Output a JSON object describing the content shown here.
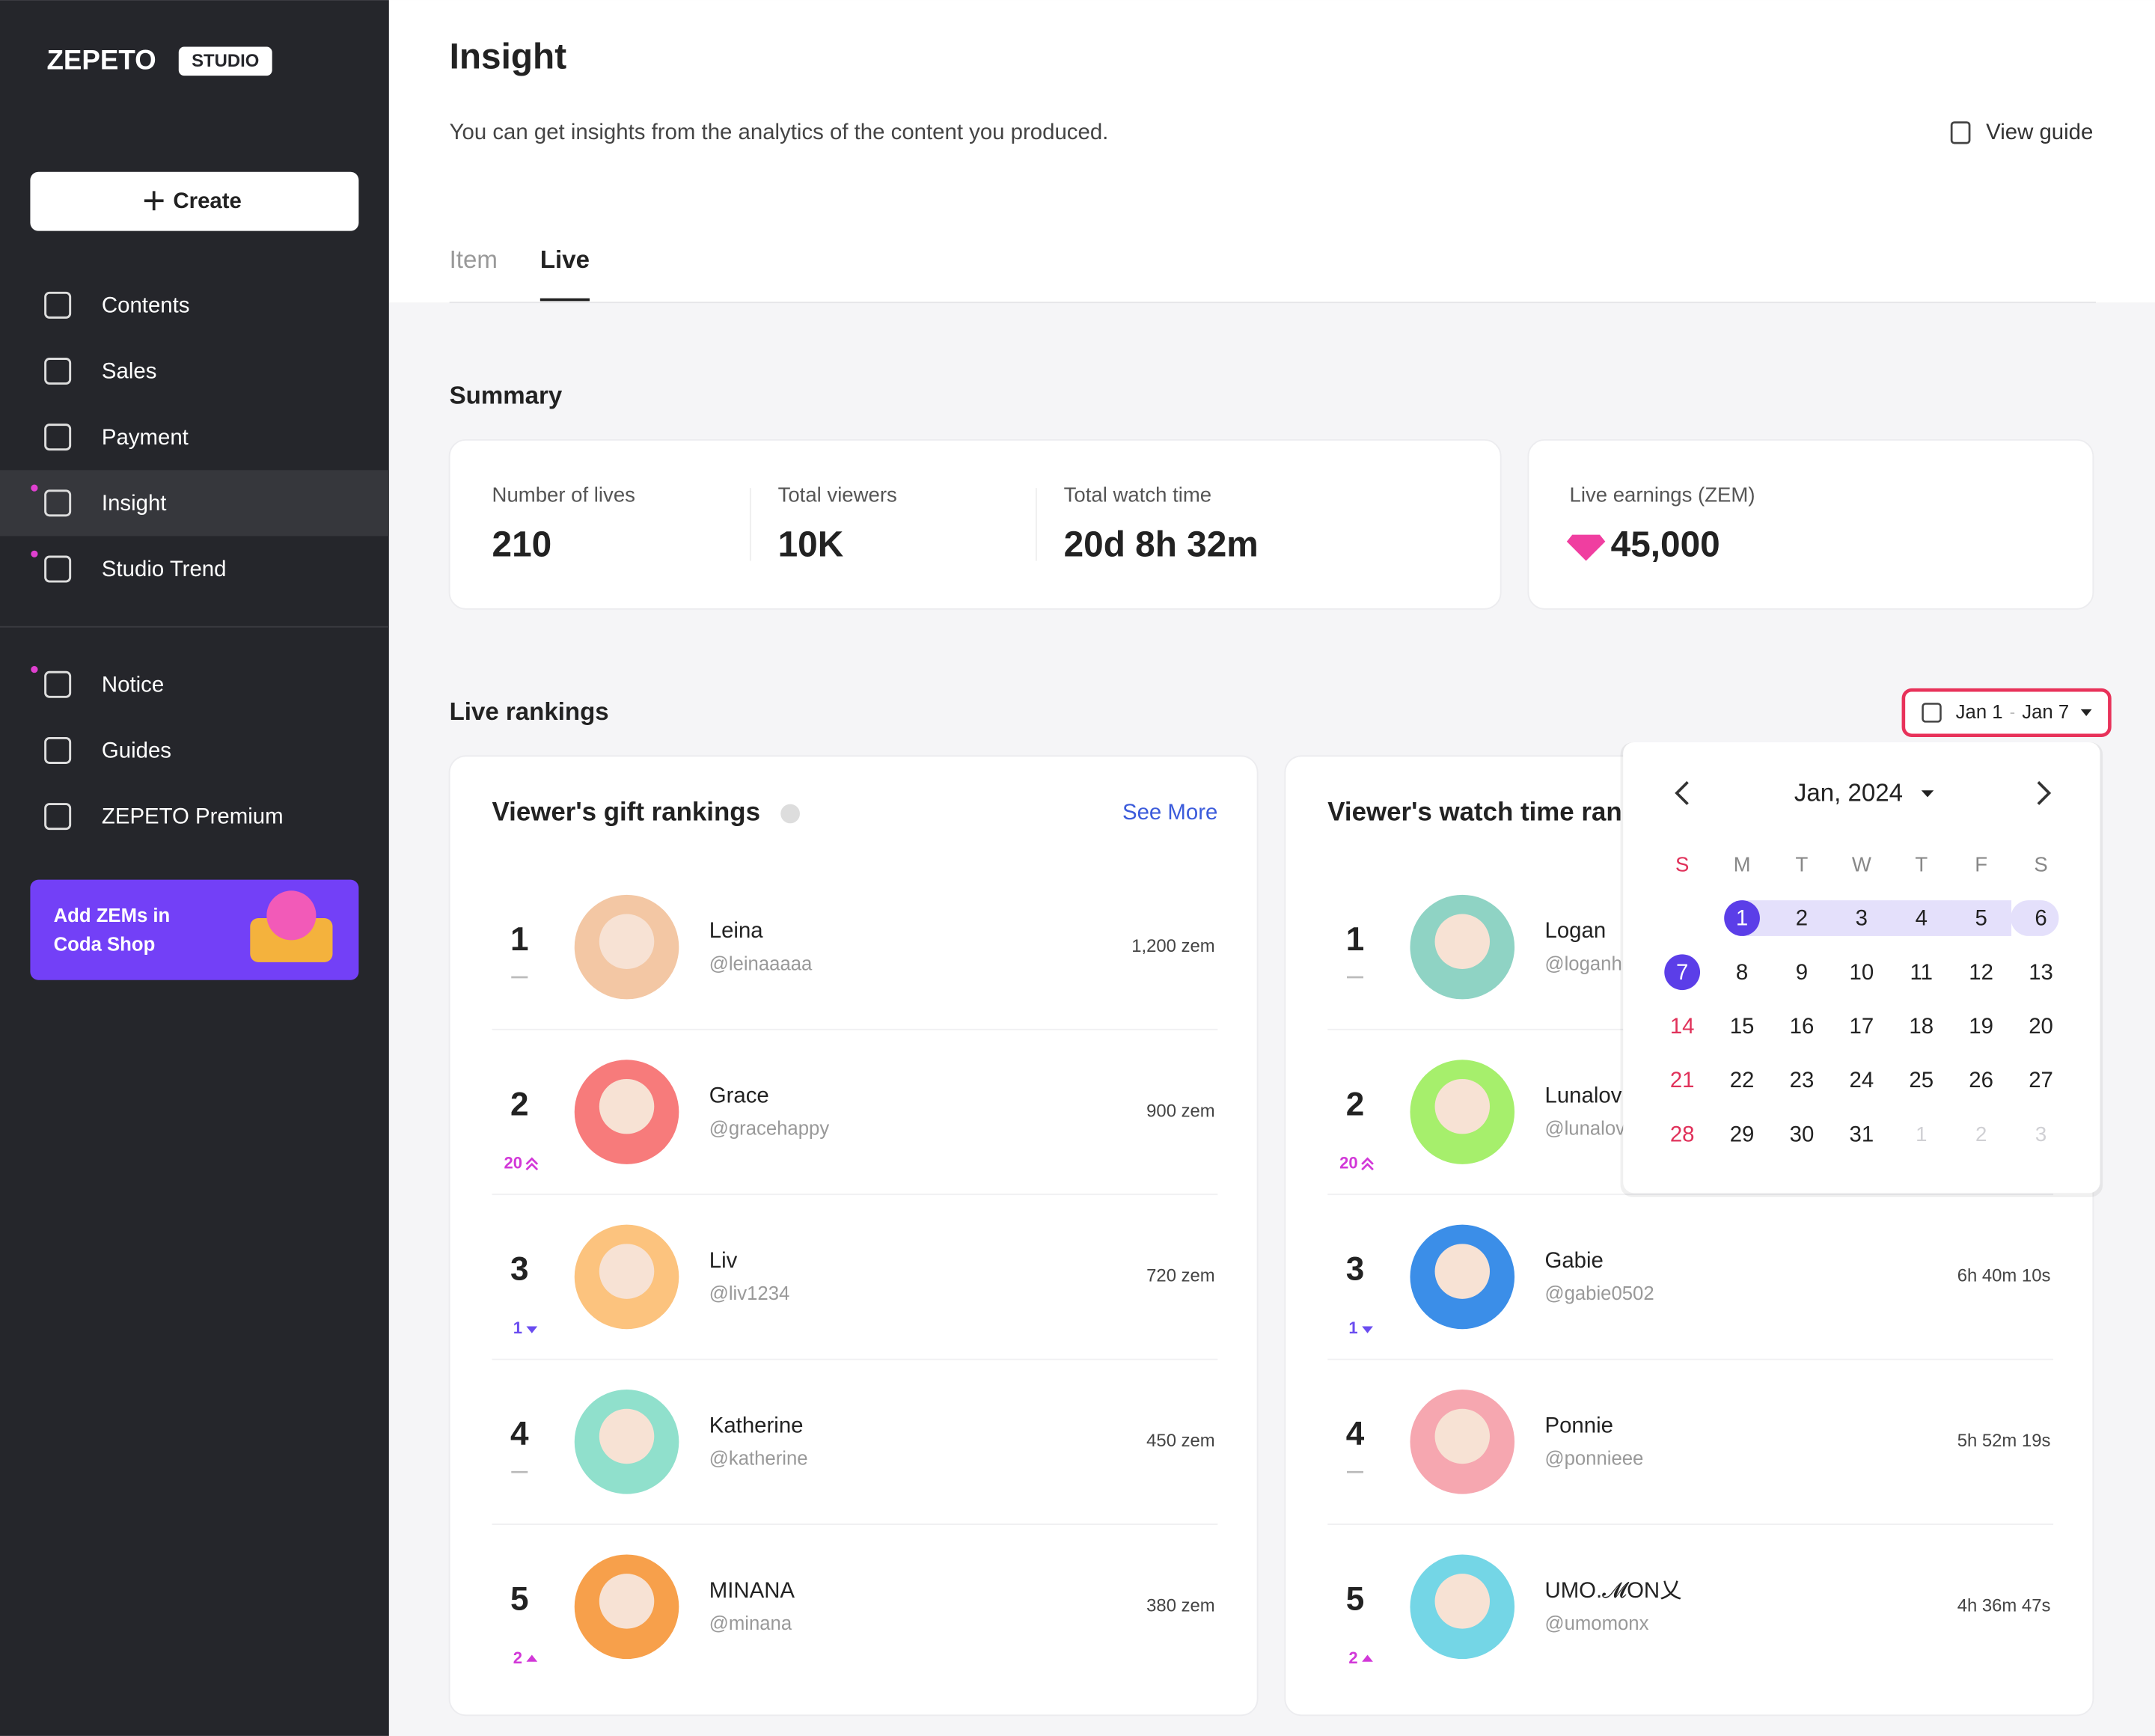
{
  "sidebar": {
    "logo": "ZEPETO",
    "logo_badge": "STUDIO",
    "create_button": "Create",
    "nav": [
      {
        "label": "Contents"
      },
      {
        "label": "Sales"
      },
      {
        "label": "Payment"
      },
      {
        "label": "Insight",
        "active": true,
        "new": true
      },
      {
        "label": "Studio Trend",
        "new": true
      }
    ],
    "secondary_nav": [
      {
        "label": "Notice",
        "new": true
      },
      {
        "label": "Guides"
      },
      {
        "label": "ZEPETO Premium"
      }
    ],
    "promo": {
      "lines": [
        "Add ZEMs in",
        "Coda Shop"
      ]
    }
  },
  "header": {
    "title": "Insight",
    "description": "You can get insights from the analytics of the content you produced.",
    "view_guide": "View guide"
  },
  "tabs": {
    "items": [
      "Item",
      "Live"
    ],
    "active": 1
  },
  "summary": {
    "title": "Summary",
    "stats": [
      {
        "label": "Number of lives",
        "value": "210"
      },
      {
        "label": "Total viewers",
        "value": "10K"
      },
      {
        "label": "Total watch time",
        "value": "20d 8h 32m"
      }
    ],
    "earnings": {
      "label": "Live earnings (ZEM)",
      "value": "45,000"
    }
  },
  "rankings": {
    "title": "Live rankings",
    "date_range": {
      "start": "Jan 1",
      "separator": "-",
      "end": "Jan 7"
    },
    "panels": [
      {
        "title": "Viewer's gift rankings",
        "see_more": "See More",
        "rows": [
          {
            "rank": 1,
            "name": "Leina",
            "handle": "@leinaaaaa",
            "value": "1,200 zem"
          },
          {
            "rank": 2,
            "change": 20,
            "trend": "up-fast",
            "name": "Grace",
            "handle": "@gracehappy",
            "value": "900 zem"
          },
          {
            "rank": 3,
            "change": 1,
            "trend": "down",
            "name": "Liv",
            "handle": "@liv1234",
            "value": "720 zem"
          },
          {
            "rank": 4,
            "name": "Katherine",
            "handle": "@katherine",
            "value": "450 zem"
          },
          {
            "rank": 5,
            "change": 2,
            "trend": "up",
            "name": "MINANA",
            "handle": "@minana",
            "value": "380 zem"
          }
        ]
      },
      {
        "title": "Viewer's watch time rankings",
        "rows": [
          {
            "rank": 1,
            "name": "Logan",
            "handle": "@loganh"
          },
          {
            "rank": 2,
            "change": 20,
            "trend": "up-fast",
            "name": "Lunalov",
            "handle": "@lunalov"
          },
          {
            "rank": 3,
            "change": 1,
            "trend": "down",
            "name": "Gabie",
            "handle": "@gabie0502",
            "value": "6h 40m 10s"
          },
          {
            "rank": 4,
            "name": "Ponnie",
            "handle": "@ponnieee",
            "value": "5h 52m 19s"
          },
          {
            "rank": 5,
            "change": 2,
            "trend": "up",
            "name": "UMO.𝓜ON乂",
            "handle": "@umomonx",
            "value": "4h 36m 47s"
          }
        ]
      }
    ]
  },
  "calendar": {
    "month": "Jan, 2024",
    "weekdays": [
      "S",
      "M",
      "T",
      "W",
      "T",
      "F",
      "S"
    ],
    "start_weekday": 1,
    "days": [
      1,
      2,
      3,
      4,
      5,
      6,
      7,
      8,
      9,
      10,
      11,
      12,
      13,
      14,
      15,
      16,
      17,
      18,
      19,
      20,
      21,
      22,
      23,
      24,
      25,
      26,
      27,
      28,
      29,
      30,
      31
    ],
    "next_month_days": [
      1,
      2,
      3
    ],
    "selected_range": [
      1,
      7
    ]
  }
}
